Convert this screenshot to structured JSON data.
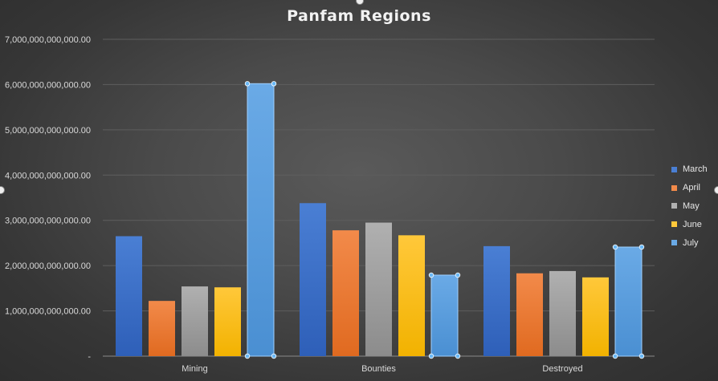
{
  "chart_data": {
    "type": "bar",
    "title": "Panfam Regions",
    "categories": [
      "Mining",
      "Bounties",
      "Destroyed"
    ],
    "series": [
      {
        "name": "March",
        "values": [
          2650000000000,
          3380000000000,
          2430000000000
        ]
      },
      {
        "name": "April",
        "values": [
          1220000000000,
          2780000000000,
          1830000000000
        ]
      },
      {
        "name": "May",
        "values": [
          1540000000000,
          2950000000000,
          1880000000000
        ]
      },
      {
        "name": "June",
        "values": [
          1520000000000,
          2670000000000,
          1740000000000
        ]
      },
      {
        "name": "July",
        "values": [
          6020000000000,
          1790000000000,
          2410000000000
        ]
      }
    ],
    "y_ticks": [
      "-",
      "1,000,000,000,000.00",
      "2,000,000,000,000.00",
      "3,000,000,000,000.00",
      "4,000,000,000,000.00",
      "5,000,000,000,000.00",
      "6,000,000,000,000.00",
      "7,000,000,000,000.00"
    ],
    "ylim": [
      0,
      7000000000000
    ],
    "grid": true,
    "legend_position": "right",
    "selected_series": "July",
    "colors": {
      "March": [
        "#4a7fd4",
        "#2e5fb8"
      ],
      "April": [
        "#f28a4a",
        "#e06a20"
      ],
      "May": [
        "#b0b0b0",
        "#8c8c8c"
      ],
      "June": [
        "#ffc83a",
        "#f2b200"
      ],
      "July": [
        "#6aaae6",
        "#4a8fd2"
      ]
    }
  }
}
